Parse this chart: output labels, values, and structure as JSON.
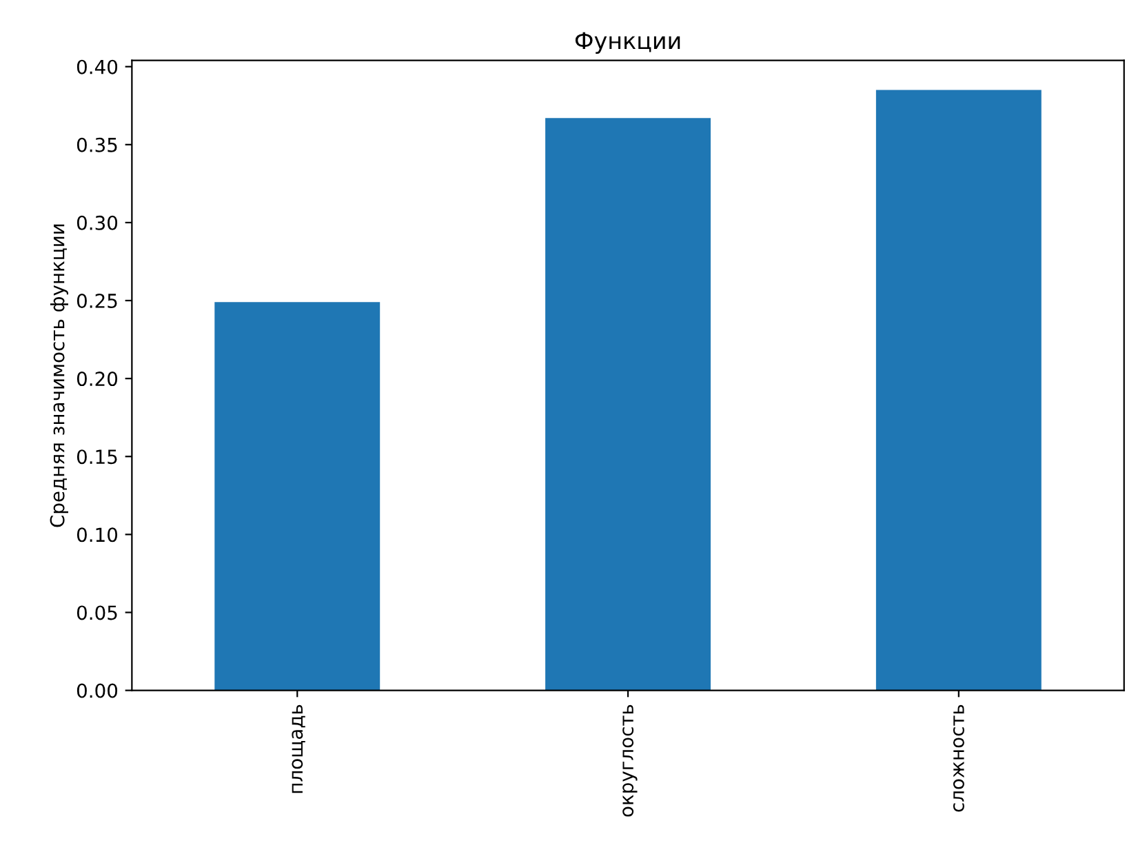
{
  "chart_data": {
    "type": "bar",
    "title": "Функции",
    "ylabel": "Средняя значимость функции",
    "categories": [
      "площадь",
      "округлость",
      "сложность"
    ],
    "values": [
      0.249,
      0.367,
      0.385
    ],
    "color": "#1f77b4",
    "ylim": [
      0,
      0.404
    ],
    "yticks": [
      {
        "value": 0,
        "label": "0.00"
      },
      {
        "value": 0.05,
        "label": "0.05"
      },
      {
        "value": 0.1,
        "label": "0.10"
      },
      {
        "value": 0.15,
        "label": "0.15"
      },
      {
        "value": 0.2,
        "label": "0.20"
      },
      {
        "value": 0.25,
        "label": "0.25"
      },
      {
        "value": 0.3,
        "label": "0.30"
      },
      {
        "value": 0.35,
        "label": "0.35"
      },
      {
        "value": 0.4,
        "label": "0.40"
      }
    ],
    "grid": false,
    "legend": false
  }
}
